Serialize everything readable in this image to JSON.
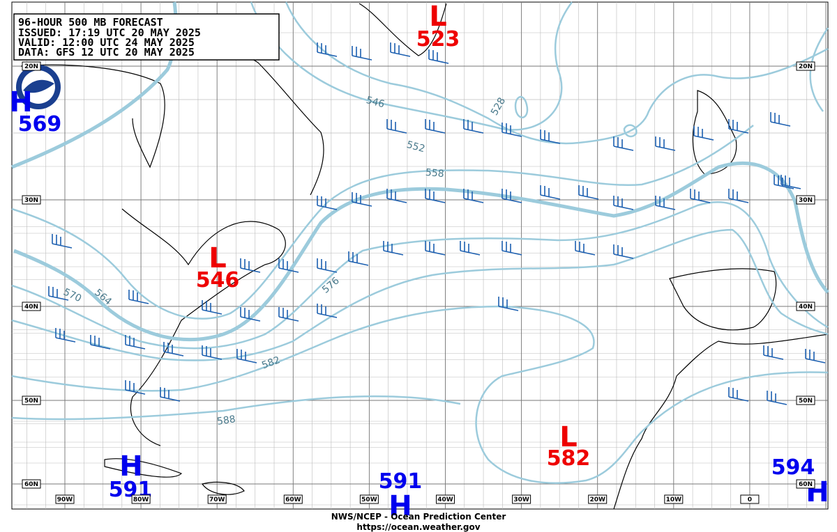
{
  "header": {
    "lines": [
      "96-HOUR 500 MB FORECAST",
      "ISSUED: 17:19 UTC 20 MAY 2025",
      "VALID:  12:00 UTC 24 MAY 2025",
      "DATA:   GFS 12 UTC 20 MAY 2025"
    ]
  },
  "centers": [
    {
      "symbol": "L",
      "value": 523
    },
    {
      "symbol": "L",
      "value": 546
    },
    {
      "symbol": "L",
      "value": 582
    },
    {
      "symbol": "H",
      "value": 569
    },
    {
      "symbol": "H",
      "value": 591
    },
    {
      "symbol": "H",
      "value": 591
    },
    {
      "symbol": "H",
      "value": 594
    }
  ],
  "contour_labels": [
    546,
    552,
    558,
    528,
    570,
    564,
    576,
    582,
    588
  ],
  "lat_labels": [
    "60N",
    "50N",
    "40N",
    "30N",
    "20N"
  ],
  "lon_labels": [
    "90W",
    "80W",
    "70W",
    "60W",
    "50W",
    "40W",
    "30W",
    "20W",
    "10W",
    "0"
  ],
  "footer": {
    "agency": "NWS/NCEP - Ocean Prediction Center",
    "url": "https://ocean.weather.gov"
  }
}
